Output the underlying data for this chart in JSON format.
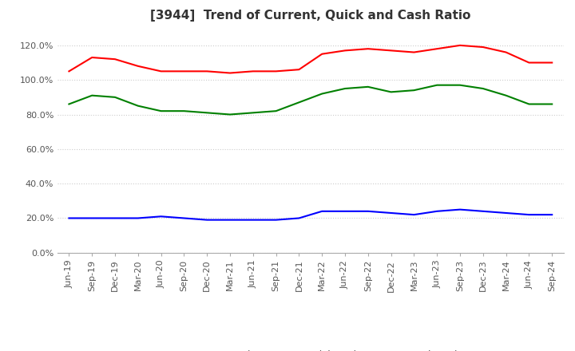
{
  "title": "[3944]  Trend of Current, Quick and Cash Ratio",
  "x_labels": [
    "Jun-19",
    "Sep-19",
    "Dec-19",
    "Mar-20",
    "Jun-20",
    "Sep-20",
    "Dec-20",
    "Mar-21",
    "Jun-21",
    "Sep-21",
    "Dec-21",
    "Mar-22",
    "Jun-22",
    "Sep-22",
    "Dec-22",
    "Mar-23",
    "Jun-23",
    "Sep-23",
    "Dec-23",
    "Mar-24",
    "Jun-24",
    "Sep-24"
  ],
  "current_ratio": [
    105,
    113,
    112,
    108,
    105,
    105,
    105,
    104,
    105,
    105,
    106,
    115,
    117,
    118,
    117,
    116,
    118,
    120,
    119,
    116,
    110,
    110
  ],
  "quick_ratio": [
    86,
    91,
    90,
    85,
    82,
    82,
    81,
    80,
    81,
    82,
    87,
    92,
    95,
    96,
    93,
    94,
    97,
    97,
    95,
    91,
    86,
    86
  ],
  "cash_ratio": [
    20,
    20,
    20,
    20,
    21,
    20,
    19,
    19,
    19,
    19,
    20,
    24,
    24,
    24,
    23,
    22,
    24,
    25,
    24,
    23,
    22,
    22
  ],
  "current_color": "#ff0000",
  "quick_color": "#008000",
  "cash_color": "#0000ff",
  "ylim": [
    0,
    130
  ],
  "yticks": [
    0,
    20,
    40,
    60,
    80,
    100,
    120
  ],
  "background_color": "#ffffff",
  "title_fontsize": 11,
  "tick_fontsize": 8,
  "legend_labels": [
    "Current Ratio",
    "Quick Ratio",
    "Cash Ratio"
  ],
  "legend_fontsize": 9,
  "grid_color": "#cccccc",
  "grid_style": ":",
  "line_width": 1.5
}
